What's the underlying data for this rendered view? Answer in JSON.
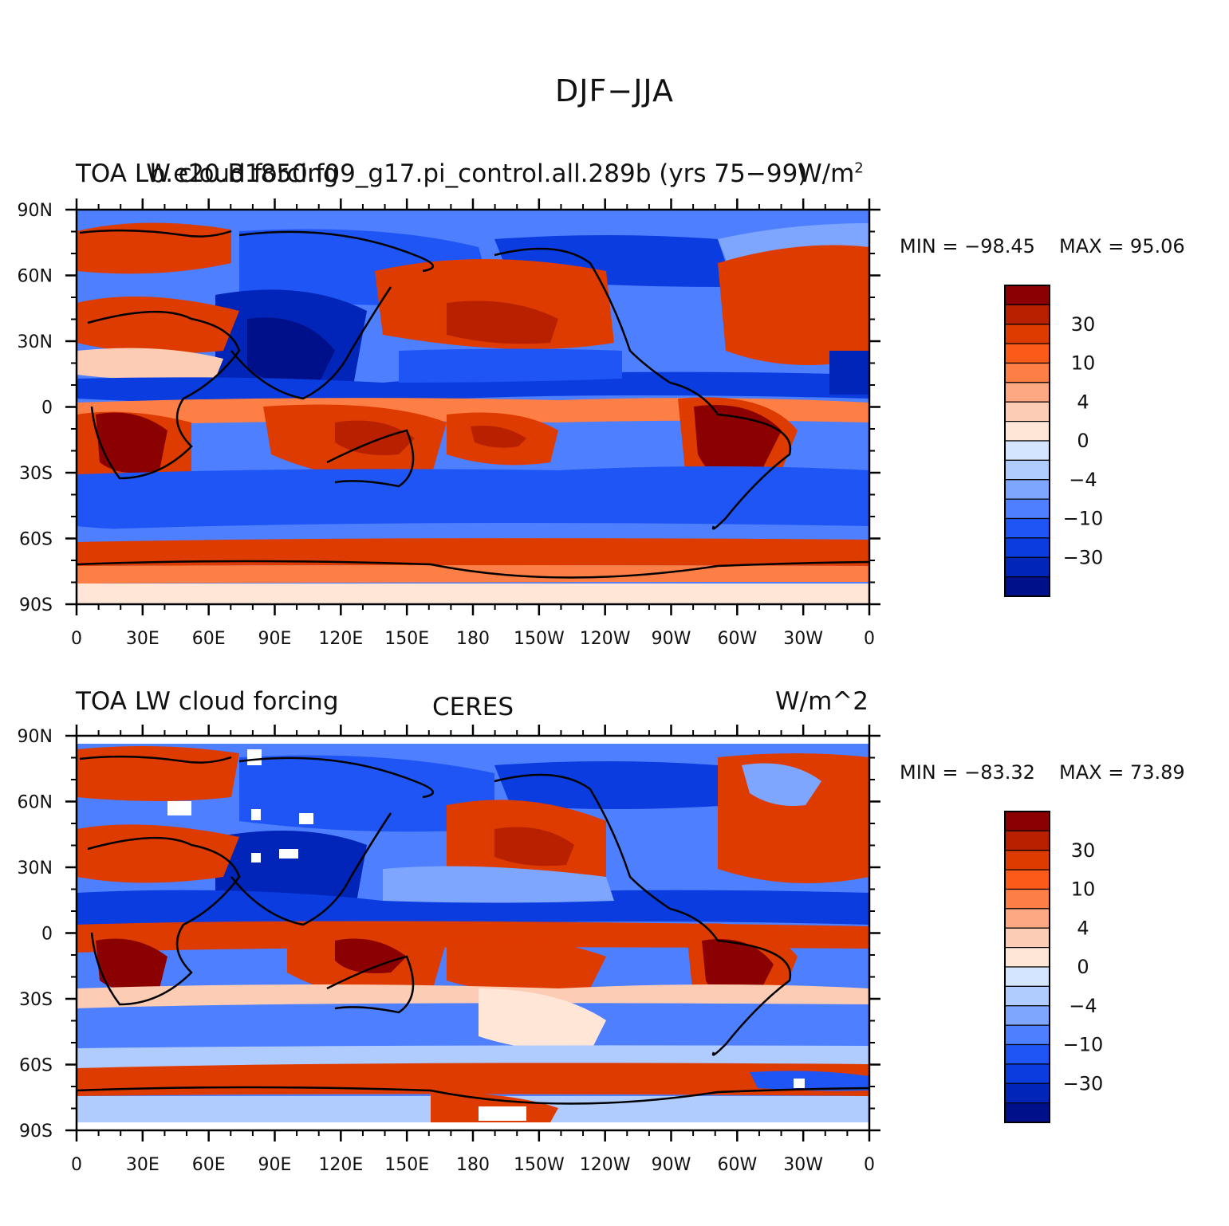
{
  "figure": {
    "title": "DJF−JJA"
  },
  "panels": [
    {
      "id": "model",
      "left_title": "TOA LW cloud forcing",
      "center_title": "b.e20.B1850.f09_g17.pi_control.all.289b (yrs 75−99)",
      "units": "W/m",
      "units_sup": "2",
      "min_label": "MIN = −98.45",
      "max_label": "MAX =  95.06"
    },
    {
      "id": "obs",
      "left_title": "TOA LW cloud forcing",
      "center_title": "CERES",
      "units": "W/m^2",
      "units_sup": "",
      "min_label": "MIN = −83.32",
      "max_label": "MAX =  73.89"
    }
  ],
  "axes": {
    "x_ticks": [
      "0",
      "30E",
      "60E",
      "90E",
      "120E",
      "150E",
      "180",
      "150W",
      "120W",
      "90W",
      "60W",
      "30W",
      "0"
    ],
    "y_ticks": [
      "90N",
      "60N",
      "30N",
      "0",
      "30S",
      "60S",
      "90S"
    ]
  },
  "colorbar": {
    "colors": [
      "#8b0000",
      "#b82000",
      "#de3b00",
      "#fc5a18",
      "#fd7f45",
      "#fda882",
      "#fdccb4",
      "#ffe6d7",
      "#d4e6ff",
      "#b0ccff",
      "#7ea6ff",
      "#4d7fff",
      "#1f55f5",
      "#0a3ce0",
      "#0025b8",
      "#00108a"
    ],
    "labels": [
      "30",
      "10",
      "4",
      "0",
      "−4",
      "−10",
      "−30"
    ]
  },
  "chart_data": [
    {
      "type": "heatmap",
      "title": "TOA LW cloud forcing",
      "subtitle": "b.e20.B1850.f09_g17.pi_control.all.289b (yrs 75−99)",
      "units": "W/m^2",
      "x_range": [
        "0",
        "0"
      ],
      "y_range": [
        "90S",
        "90N"
      ],
      "min": -98.45,
      "max": 95.06,
      "levels": [
        30,
        10,
        4,
        0,
        -4,
        -10,
        -30
      ]
    },
    {
      "type": "heatmap",
      "title": "TOA LW cloud forcing",
      "subtitle": "CERES",
      "units": "W/m^2",
      "x_range": [
        "0",
        "0"
      ],
      "y_range": [
        "90S",
        "90N"
      ],
      "min": -83.32,
      "max": 73.89,
      "levels": [
        30,
        10,
        4,
        0,
        -4,
        -10,
        -30
      ]
    }
  ]
}
